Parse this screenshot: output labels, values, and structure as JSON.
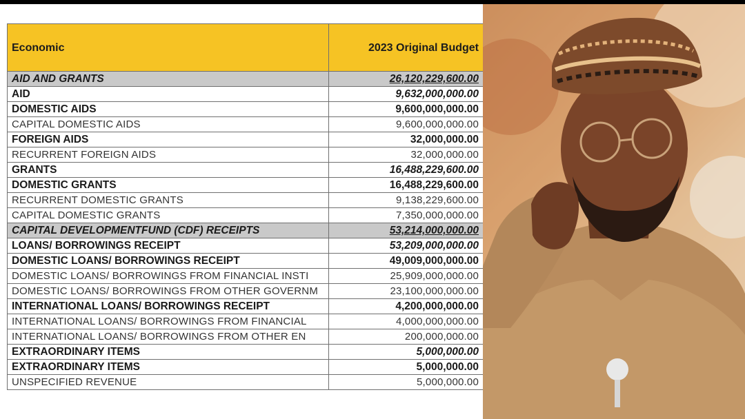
{
  "table": {
    "headers": {
      "economic": "Economic",
      "budget": "2023 Original Budget"
    },
    "rows": [
      {
        "label": "AID AND GRANTS",
        "amount": "26,120,229,600.00",
        "level": "lvl0"
      },
      {
        "label": "AID",
        "amount": "9,632,000,000.00",
        "level": "lvl1 lvl1i"
      },
      {
        "label": "DOMESTIC AIDS",
        "amount": "9,600,000,000.00",
        "level": "lvl1"
      },
      {
        "label": "CAPITAL DOMESTIC AIDS",
        "amount": "9,600,000,000.00",
        "level": "lvl2"
      },
      {
        "label": "FOREIGN AIDS",
        "amount": "32,000,000.00",
        "level": "lvl1"
      },
      {
        "label": "RECURRENT FOREIGN AIDS",
        "amount": "32,000,000.00",
        "level": "lvl2"
      },
      {
        "label": "GRANTS",
        "amount": "16,488,229,600.00",
        "level": "lvl1 lvl1i"
      },
      {
        "label": "DOMESTIC GRANTS",
        "amount": "16,488,229,600.00",
        "level": "lvl1"
      },
      {
        "label": "RECURRENT DOMESTIC GRANTS",
        "amount": "9,138,229,600.00",
        "level": "lvl2"
      },
      {
        "label": "CAPITAL DOMESTIC GRANTS",
        "amount": "7,350,000,000.00",
        "level": "lvl2"
      },
      {
        "label": "CAPITAL DEVELOPMENTFUND (CDF) RECEIPTS",
        "amount": "53,214,000,000.00",
        "level": "lvl0"
      },
      {
        "label": "LOANS/ BORROWINGS RECEIPT",
        "amount": "53,209,000,000.00",
        "level": "lvl1 lvl1i"
      },
      {
        "label": "DOMESTIC LOANS/ BORROWINGS RECEIPT",
        "amount": "49,009,000,000.00",
        "level": "lvl1"
      },
      {
        "label": "DOMESTIC LOANS/ BORROWINGS FROM FINANCIAL INSTI",
        "amount": "25,909,000,000.00",
        "level": "lvl2"
      },
      {
        "label": "DOMESTIC LOANS/ BORROWINGS FROM OTHER GOVERNM",
        "amount": "23,100,000,000.00",
        "level": "lvl2"
      },
      {
        "label": "INTERNATIONAL LOANS/ BORROWINGS RECEIPT",
        "amount": "4,200,000,000.00",
        "level": "lvl1"
      },
      {
        "label": "INTERNATIONAL LOANS/ BORROWINGS FROM FINANCIAL",
        "amount": "4,000,000,000.00",
        "level": "lvl2"
      },
      {
        "label": "INTERNATIONAL LOANS/ BORROWINGS FROM OTHER  EN",
        "amount": "200,000,000.00",
        "level": "lvl2"
      },
      {
        "label": "EXTRAORDINARY ITEMS",
        "amount": "5,000,000.00",
        "level": "lvl1 lvl1i"
      },
      {
        "label": "EXTRAORDINARY ITEMS",
        "amount": "5,000,000.00",
        "level": "lvl1"
      },
      {
        "label": "UNSPECIFIED REVENUE",
        "amount": "5,000,000.00",
        "level": "lvl2"
      }
    ]
  },
  "photo": {
    "subject": "official-portrait",
    "name_tag_text": ""
  },
  "colors": {
    "header": "#f6c324",
    "section_row": "#c9c9c9"
  }
}
